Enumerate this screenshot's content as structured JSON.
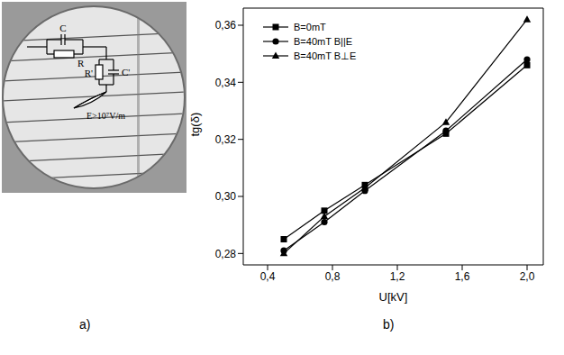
{
  "chart_data": {
    "type": "line",
    "x_label": "U[kV]",
    "y_label": "tg(δ)",
    "x": [
      0.5,
      0.75,
      1.0,
      1.5,
      2.0
    ],
    "series": [
      {
        "name": "B=0mT",
        "color": "#000000",
        "marker": "square",
        "line_style": "solid",
        "values": [
          0.285,
          0.295,
          0.304,
          0.322,
          0.346
        ]
      },
      {
        "name": "B=40mT B||E",
        "color": "#000000",
        "marker": "circle",
        "line_style": "solid",
        "values": [
          0.281,
          0.291,
          0.302,
          0.323,
          0.348
        ]
      },
      {
        "name": "B=40mT B⊥E",
        "color": "#000000",
        "marker": "triangle",
        "line_style": "solid",
        "values": [
          0.28,
          0.293,
          0.303,
          0.326,
          0.362
        ]
      }
    ],
    "xlim": [
      0.25,
      2.1
    ],
    "ylim": [
      0.276,
      0.366
    ],
    "xticks": [
      {
        "value": 0.4,
        "label": "0,4"
      },
      {
        "value": 0.8,
        "label": "0,8"
      },
      {
        "value": 1.2,
        "label": "1,2"
      },
      {
        "value": 1.6,
        "label": "1,6"
      },
      {
        "value": 2.0,
        "label": "2,0"
      }
    ],
    "yticks": [
      {
        "value": 0.28,
        "label": "0,28"
      },
      {
        "value": 0.3,
        "label": "0,30"
      },
      {
        "value": 0.32,
        "label": "0,32"
      },
      {
        "value": 0.34,
        "label": "0,34"
      },
      {
        "value": 0.36,
        "label": "0,36"
      }
    ],
    "legend": "upper left",
    "grid": false
  },
  "diagram": {
    "labels": {
      "C": "C",
      "R": "R",
      "R_prime": "R'",
      "C_prime": "C'"
    },
    "field_label": "E>10⁷V/m"
  },
  "panel_letters": [
    "a)",
    "b)"
  ]
}
